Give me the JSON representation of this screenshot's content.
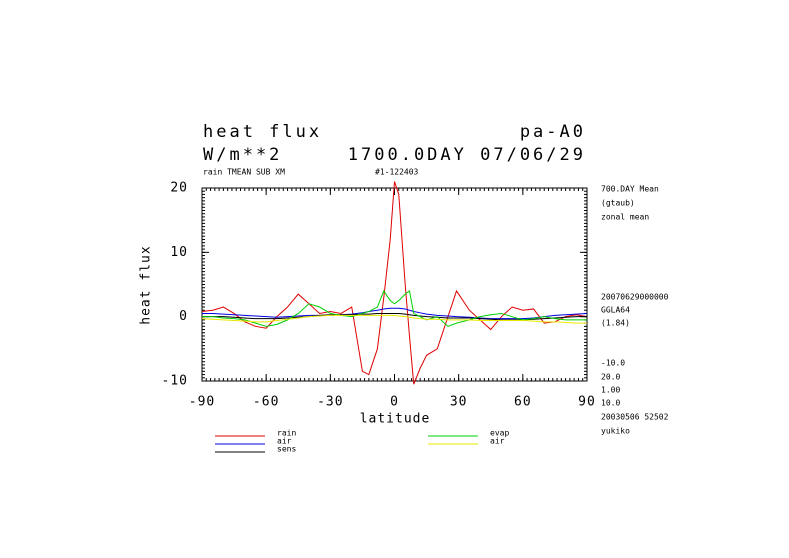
{
  "chart_data": {
    "type": "line",
    "title": "heat flux",
    "title_right": "pa-A0",
    "units": "W/m**2",
    "subtitle": "1700.0DAY 07/06/29",
    "note_left": "rain TMEAN SUB XM",
    "note_right": "#1-122403",
    "side_notes": [
      "700.DAY Mean",
      "(gtaub)",
      "zonal mean",
      "20070629000000",
      "GGLA64",
      "(1.84)",
      "-10.0",
      "20.0",
      "1.00",
      "10.0",
      "20030506  52502",
      "yukiko"
    ],
    "xlabel": "latitude",
    "ylabel": "heat flux",
    "xlim": [
      -90,
      90
    ],
    "ylim": [
      -10,
      20
    ],
    "xticks": [
      -90,
      -60,
      -30,
      0,
      30,
      60,
      90
    ],
    "yticks": [
      -10,
      0,
      10,
      20
    ],
    "x": [
      -90,
      -85,
      -80,
      -75,
      -70,
      -65,
      -60,
      -55,
      -50,
      -45,
      -40,
      -35,
      -30,
      -25,
      -20,
      -15,
      -12,
      -8,
      -5,
      -2,
      0,
      2,
      5,
      7,
      9,
      12,
      15,
      20,
      25,
      29,
      35,
      40,
      45,
      50,
      55,
      60,
      65,
      70,
      75,
      80,
      85,
      90
    ],
    "series": [
      {
        "name": "rain",
        "color": "#e00000",
        "values": [
          0.8,
          1,
          1.5,
          0.5,
          -0.8,
          -1.5,
          -1.8,
          0,
          1.5,
          3.5,
          2,
          0.5,
          0.8,
          0.5,
          1.5,
          -8.5,
          -9,
          -5,
          3,
          12,
          21,
          19,
          5,
          -3,
          -10.5,
          -8,
          -6,
          -5,
          0,
          4,
          1,
          -0.5,
          -2,
          0,
          1.5,
          1,
          1.2,
          -1,
          -0.8,
          0,
          0.3,
          0
        ]
      },
      {
        "name": "air",
        "color": "#0000e0",
        "values": [
          0.5,
          0.5,
          0.4,
          0.3,
          0.2,
          0.1,
          0,
          -0.1,
          0,
          0.1,
          0.2,
          0.2,
          0.2,
          0.3,
          0.4,
          0.6,
          0.8,
          1,
          1.2,
          1.3,
          1.3,
          1.3,
          1.2,
          1,
          0.8,
          0.6,
          0.4,
          0.2,
          0.1,
          0,
          -0.1,
          -0.2,
          -0.3,
          -0.3,
          -0.3,
          -0.3,
          -0.2,
          0,
          0.2,
          0.3,
          0.4,
          0.5
        ]
      },
      {
        "name": "sens",
        "color": "#000000",
        "values": [
          0,
          0,
          0,
          -0.1,
          -0.2,
          -0.3,
          -0.3,
          -0.3,
          -0.2,
          -0.1,
          0,
          0.2,
          0.3,
          0.3,
          0.3,
          0.4,
          0.4,
          0.5,
          0.5,
          0.5,
          0.5,
          0.5,
          0.4,
          0.3,
          0.2,
          0.1,
          0,
          -0.1,
          -0.2,
          -0.2,
          -0.2,
          -0.3,
          -0.4,
          -0.5,
          -0.5,
          -0.5,
          -0.4,
          -0.3,
          -0.2,
          -0.1,
          0,
          0
        ]
      },
      {
        "name": "evap",
        "color": "#00d000",
        "values": [
          0,
          0,
          -0.2,
          -0.3,
          -0.5,
          -1,
          -1.5,
          -1.2,
          -0.5,
          0.5,
          2,
          1.5,
          0.5,
          0.2,
          0,
          0.5,
          0.8,
          1.5,
          4,
          2.5,
          2,
          2.5,
          3.5,
          4,
          0.5,
          0,
          -0.5,
          0,
          -1.5,
          -1,
          -0.5,
          0,
          0.3,
          0.5,
          0,
          -0.5,
          -0.3,
          0,
          -0.3,
          -0.5,
          -0.5,
          -0.5
        ]
      },
      {
        "name": "air",
        "color": "#e8e800",
        "values": [
          -0.3,
          -0.4,
          -0.5,
          -0.6,
          -0.7,
          -0.8,
          -0.8,
          -0.6,
          -0.4,
          -0.2,
          0,
          0.1,
          0.2,
          0.2,
          0.2,
          0.2,
          0.2,
          0.2,
          0.2,
          0.2,
          0.2,
          0.1,
          0,
          -0.1,
          -0.2,
          -0.3,
          -0.4,
          -0.4,
          -0.5,
          -0.5,
          -0.5,
          -0.6,
          -0.6,
          -0.6,
          -0.6,
          -0.6,
          -0.7,
          -0.8,
          -0.8,
          -0.9,
          -1,
          -1
        ]
      }
    ]
  }
}
